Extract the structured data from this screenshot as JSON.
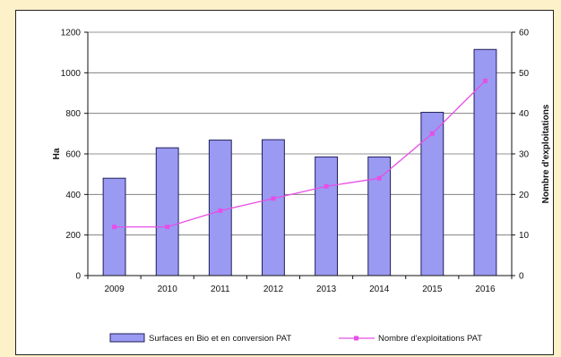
{
  "chart_data": {
    "type": "bar+line",
    "categories": [
      "2009",
      "2010",
      "2011",
      "2012",
      "2013",
      "2014",
      "2015",
      "2016"
    ],
    "series": [
      {
        "name": "Surfaces en Bio et en conversion PAT",
        "type": "bar",
        "axis": "left",
        "values": [
          480,
          630,
          668,
          670,
          585,
          585,
          805,
          1115
        ]
      },
      {
        "name": "Nombre d'exploitations PAT",
        "type": "line",
        "axis": "right",
        "values": [
          12,
          12,
          16,
          19,
          22,
          24,
          35,
          48
        ]
      }
    ],
    "ylabel": "Ha",
    "y2label": "Nombre d'exploitations",
    "ylim": [
      0,
      1200
    ],
    "y2lim": [
      0,
      60
    ],
    "yticks": [
      "0",
      "200",
      "400",
      "600",
      "800",
      "1000",
      "1200"
    ],
    "y2ticks": [
      "0",
      "10",
      "20",
      "30",
      "40",
      "50",
      "60"
    ],
    "grid": true,
    "legend_position": "bottom",
    "colors": {
      "bar_fill": "#9a9af2",
      "bar_stroke": "#1f1f5a",
      "line": "#e64fe6",
      "grid": "#6f6f6f",
      "page_background": "#fdf1c9"
    }
  }
}
